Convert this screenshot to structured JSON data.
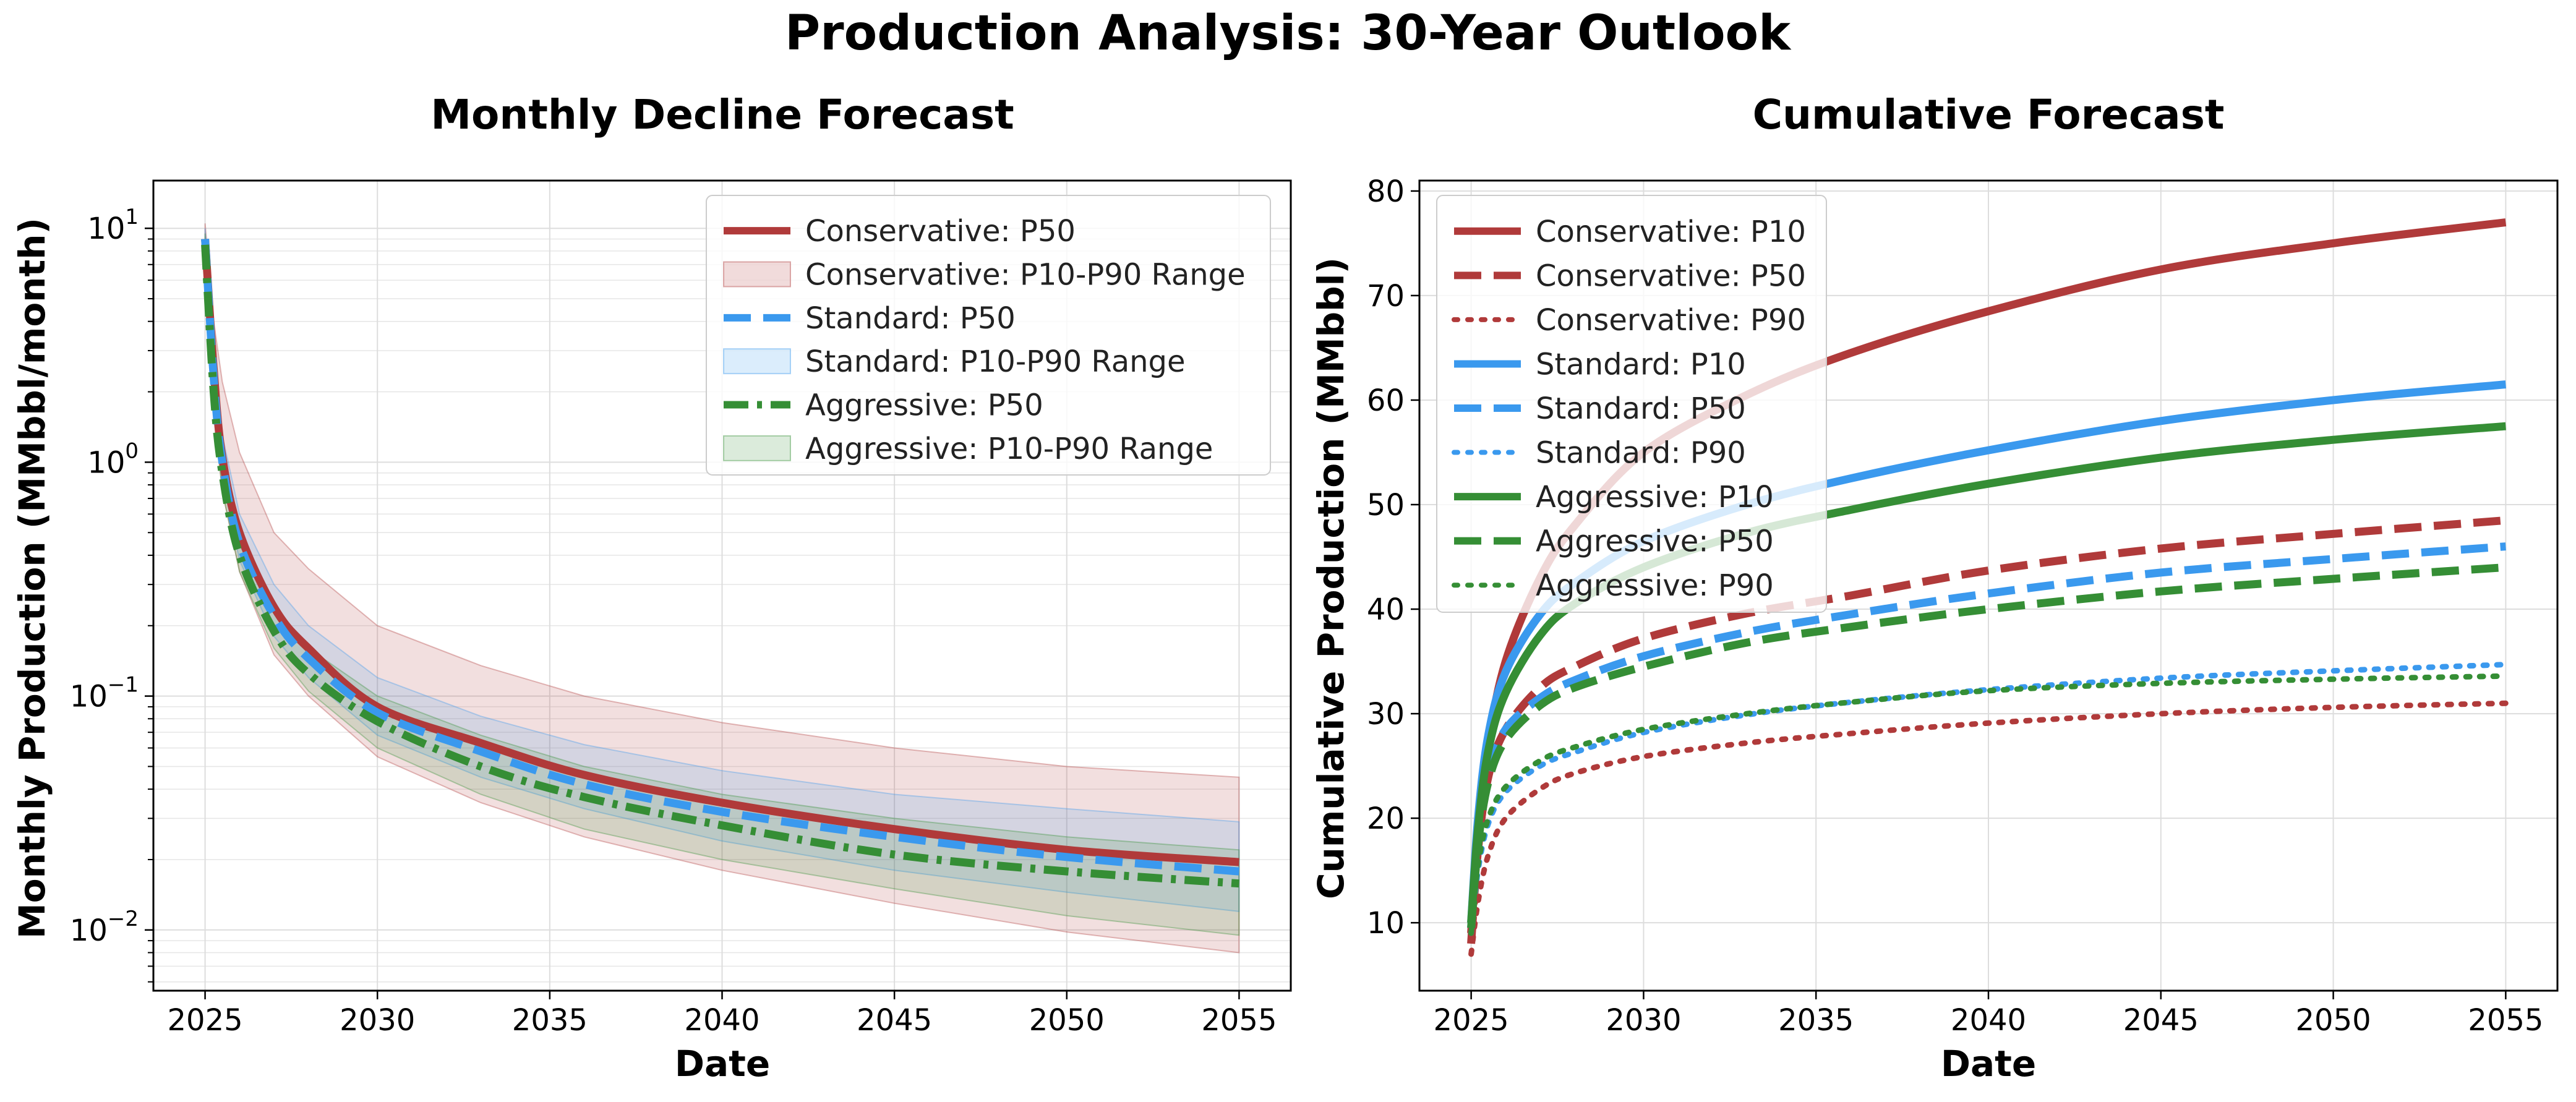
{
  "figure": {
    "title": "Production Analysis: 30-Year Outlook"
  },
  "colors": {
    "conservative": "#b03a3a",
    "standard": "#3a99ee",
    "aggressive": "#358e35"
  },
  "chart_data": [
    {
      "type": "line",
      "title": "Monthly Decline Forecast",
      "xlabel": "Date",
      "ylabel": "Monthly Production (MMbbl/month)",
      "yscale": "log",
      "xlim": [
        2023.5,
        2056.5
      ],
      "ylim": [
        0.0055,
        16
      ],
      "xticks": [
        2025,
        2030,
        2035,
        2040,
        2045,
        2050,
        2055
      ],
      "yticks": [
        {
          "value": 0.01,
          "base": "10",
          "exp": "−2"
        },
        {
          "value": 0.1,
          "base": "10",
          "exp": "−1"
        },
        {
          "value": 1,
          "base": "10",
          "exp": "0"
        },
        {
          "value": 10,
          "base": "10",
          "exp": "1"
        }
      ],
      "grid": true,
      "legend_position": "upper right",
      "series": [
        {
          "name": "Conservative: P50",
          "key": "conservative",
          "kind": "line",
          "dash": "solid",
          "x": [
            2025,
            2025.25,
            2025.5,
            2026,
            2027,
            2028,
            2030,
            2033,
            2036,
            2040,
            2045,
            2050,
            2055
          ],
          "y": [
            9.0,
            2.5,
            1.05,
            0.5,
            0.24,
            0.16,
            0.09,
            0.063,
            0.046,
            0.035,
            0.027,
            0.022,
            0.0195
          ]
        },
        {
          "name": "Conservative: P10-P90 Range",
          "key": "conservative",
          "kind": "band",
          "x": [
            2025,
            2025.25,
            2025.5,
            2026,
            2027,
            2028,
            2030,
            2033,
            2036,
            2040,
            2045,
            2050,
            2055
          ],
          "lower": [
            7.5,
            1.6,
            0.75,
            0.34,
            0.15,
            0.1,
            0.055,
            0.035,
            0.025,
            0.018,
            0.013,
            0.0098,
            0.008
          ],
          "upper": [
            10.5,
            4.0,
            2.2,
            1.1,
            0.5,
            0.35,
            0.2,
            0.135,
            0.1,
            0.077,
            0.06,
            0.05,
            0.045
          ]
        },
        {
          "name": "Standard: P50",
          "key": "standard",
          "kind": "line",
          "dash": "dashed",
          "x": [
            2025,
            2025.25,
            2025.5,
            2026,
            2027,
            2028,
            2030,
            2033,
            2036,
            2040,
            2045,
            2050,
            2055
          ],
          "y": [
            9.0,
            2.3,
            1.0,
            0.45,
            0.22,
            0.145,
            0.085,
            0.058,
            0.042,
            0.032,
            0.025,
            0.0205,
            0.0178
          ]
        },
        {
          "name": "Standard: P10-P90 Range",
          "key": "standard",
          "kind": "band",
          "x": [
            2025,
            2025.25,
            2025.5,
            2026,
            2027,
            2028,
            2030,
            2033,
            2036,
            2040,
            2045,
            2050,
            2055
          ],
          "lower": [
            8.0,
            1.9,
            0.85,
            0.38,
            0.18,
            0.12,
            0.068,
            0.045,
            0.033,
            0.024,
            0.018,
            0.0145,
            0.012
          ],
          "upper": [
            10.0,
            2.9,
            1.3,
            0.6,
            0.3,
            0.2,
            0.12,
            0.082,
            0.062,
            0.048,
            0.038,
            0.033,
            0.029
          ]
        },
        {
          "name": "Aggressive: P50",
          "key": "aggressive",
          "kind": "line",
          "dash": "dashdot",
          "x": [
            2025,
            2025.25,
            2025.5,
            2026,
            2027,
            2028,
            2030,
            2033,
            2036,
            2040,
            2045,
            2050,
            2055
          ],
          "y": [
            8.5,
            2.0,
            0.9,
            0.4,
            0.19,
            0.125,
            0.078,
            0.05,
            0.037,
            0.028,
            0.021,
            0.0178,
            0.0158
          ]
        },
        {
          "name": "Aggressive: P10-P90 Range",
          "key": "aggressive",
          "kind": "band",
          "x": [
            2025,
            2025.25,
            2025.5,
            2026,
            2027,
            2028,
            2030,
            2033,
            2036,
            2040,
            2045,
            2050,
            2055
          ],
          "lower": [
            7.0,
            1.7,
            0.75,
            0.34,
            0.16,
            0.105,
            0.06,
            0.038,
            0.027,
            0.02,
            0.015,
            0.0115,
            0.0095
          ],
          "upper": [
            9.5,
            2.4,
            1.1,
            0.48,
            0.24,
            0.16,
            0.1,
            0.068,
            0.05,
            0.038,
            0.03,
            0.025,
            0.022
          ]
        }
      ]
    },
    {
      "type": "line",
      "title": "Cumulative Forecast",
      "xlabel": "Date",
      "ylabel": "Cumulative Production (MMbbl)",
      "yscale": "linear",
      "xlim": [
        2023.5,
        2056.5
      ],
      "ylim": [
        3.5,
        81
      ],
      "xticks": [
        2025,
        2030,
        2035,
        2040,
        2045,
        2050,
        2055
      ],
      "yticks": [
        10,
        20,
        30,
        40,
        50,
        60,
        70,
        80
      ],
      "grid": true,
      "legend_position": "upper left",
      "series": [
        {
          "name": "Conservative: P10",
          "key": "conservative",
          "dash": "solid",
          "x": [
            2025,
            2025.2,
            2025.5,
            2026,
            2027,
            2028,
            2030,
            2033,
            2036,
            2040,
            2045,
            2050,
            2055
          ],
          "y": [
            9,
            18,
            27,
            35,
            43,
            48,
            55,
            60.5,
            64.5,
            68.5,
            72.5,
            75,
            77
          ]
        },
        {
          "name": "Conservative: P50",
          "key": "conservative",
          "dash": "dashed",
          "x": [
            2025,
            2025.2,
            2025.5,
            2026,
            2027,
            2028,
            2030,
            2033,
            2036,
            2040,
            2045,
            2050,
            2055
          ],
          "y": [
            8,
            17,
            24,
            28.5,
            32.5,
            34.5,
            37.2,
            39.6,
            41.3,
            43.7,
            45.8,
            47.2,
            48.5
          ]
        },
        {
          "name": "Conservative: P90",
          "key": "conservative",
          "dash": "dotted",
          "x": [
            2025,
            2025.2,
            2025.5,
            2026,
            2027,
            2028,
            2030,
            2033,
            2036,
            2040,
            2045,
            2050,
            2055
          ],
          "y": [
            7,
            12,
            16.5,
            20,
            22.8,
            24.3,
            25.9,
            27.2,
            28.1,
            29.1,
            30,
            30.6,
            31
          ]
        },
        {
          "name": "Standard: P10",
          "key": "standard",
          "dash": "solid",
          "x": [
            2025,
            2025.2,
            2025.5,
            2026,
            2027,
            2028,
            2030,
            2033,
            2036,
            2040,
            2045,
            2050,
            2055
          ],
          "y": [
            10,
            20,
            28,
            34,
            39.5,
            42.5,
            46.5,
            50,
            52.5,
            55.2,
            58,
            60,
            61.5
          ]
        },
        {
          "name": "Standard: P50",
          "key": "standard",
          "dash": "dashed",
          "x": [
            2025,
            2025.2,
            2025.5,
            2026,
            2027,
            2028,
            2030,
            2033,
            2036,
            2040,
            2045,
            2050,
            2055
          ],
          "y": [
            9.5,
            18,
            24.5,
            28.5,
            31.5,
            33.2,
            35.5,
            37.8,
            39.5,
            41.5,
            43.5,
            44.8,
            46
          ]
        },
        {
          "name": "Standard: P90",
          "key": "standard",
          "dash": "dotted",
          "x": [
            2025,
            2025.2,
            2025.5,
            2026,
            2027,
            2028,
            2030,
            2033,
            2036,
            2040,
            2045,
            2050,
            2055
          ],
          "y": [
            9,
            15,
            19.5,
            22.5,
            25,
            26.3,
            28.2,
            29.9,
            31.1,
            32.3,
            33.4,
            34.1,
            34.7
          ]
        },
        {
          "name": "Aggressive: P10",
          "key": "aggressive",
          "dash": "solid",
          "x": [
            2025,
            2025.2,
            2025.5,
            2026,
            2027,
            2028,
            2030,
            2033,
            2036,
            2040,
            2045,
            2050,
            2055
          ],
          "y": [
            10,
            19,
            26.5,
            32,
            37.5,
            40.5,
            44,
            47.3,
            49.5,
            52,
            54.5,
            56.2,
            57.5
          ]
        },
        {
          "name": "Aggressive: P50",
          "key": "aggressive",
          "dash": "dashed",
          "x": [
            2025,
            2025.2,
            2025.5,
            2026,
            2027,
            2028,
            2030,
            2033,
            2036,
            2040,
            2045,
            2050,
            2055
          ],
          "y": [
            9.5,
            17.5,
            23.5,
            27.5,
            30.8,
            32.5,
            34.5,
            36.8,
            38.3,
            40,
            41.7,
            42.9,
            44
          ]
        },
        {
          "name": "Aggressive: P90",
          "key": "aggressive",
          "dash": "dotted",
          "x": [
            2025,
            2025.2,
            2025.5,
            2026,
            2027,
            2028,
            2030,
            2033,
            2036,
            2040,
            2045,
            2050,
            2055
          ],
          "y": [
            9,
            15.5,
            20,
            23,
            25.5,
            26.8,
            28.5,
            30,
            31.1,
            32.2,
            32.9,
            33.3,
            33.6
          ]
        }
      ]
    }
  ]
}
